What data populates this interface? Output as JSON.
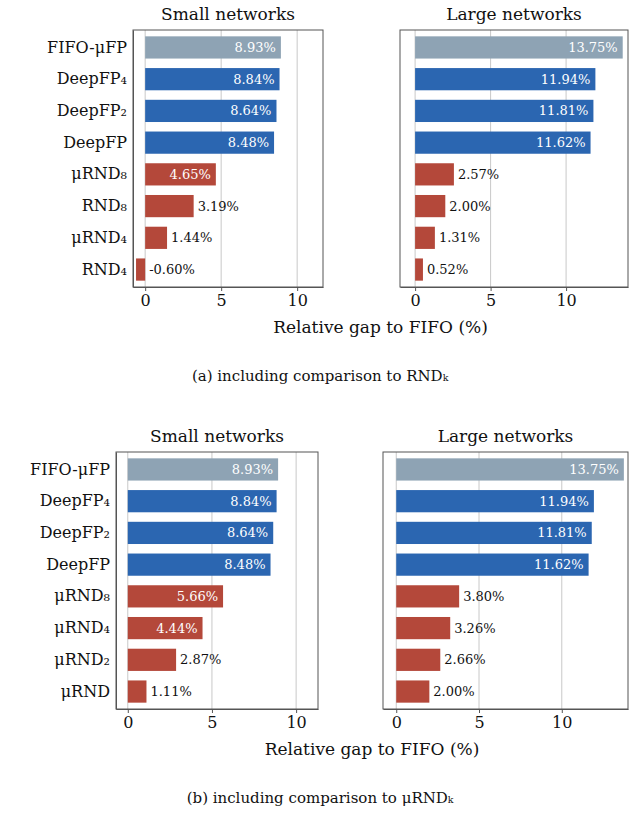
{
  "chart_data": [
    {
      "type": "bar",
      "orientation": "horizontal",
      "title": "Small networks",
      "categories": [
        "FIFO-μFP",
        "DeepFP₄",
        "DeepFP₂",
        "DeepFP",
        "μRND₈",
        "RND₈",
        "μRND₄",
        "RND₄"
      ],
      "values": [
        8.93,
        8.84,
        8.64,
        8.48,
        4.65,
        3.19,
        1.44,
        -0.6
      ],
      "value_labels": [
        "8.93%",
        "8.84%",
        "8.64%",
        "8.48%",
        "4.65%",
        "3.19%",
        "1.44%",
        "-0.60%"
      ],
      "colors": [
        "#8ea3b4",
        "#2b66b1",
        "#2b66b1",
        "#2b66b1",
        "#b4483a",
        "#b4483a",
        "#b4483a",
        "#b4483a"
      ],
      "xlim": [
        -0.8,
        11.7
      ],
      "xticks": [
        0,
        5,
        10
      ],
      "grid": true,
      "data_labels": true,
      "xlabel": "Relative gap to FIFO (%)",
      "caption": "(a) including comparison to RNDₖ"
    },
    {
      "type": "bar",
      "orientation": "horizontal",
      "title": "Large networks",
      "categories": [
        "FIFO-μFP",
        "DeepFP₄",
        "DeepFP₂",
        "DeepFP",
        "μRND₈",
        "RND₈",
        "μRND₄",
        "RND₄"
      ],
      "values": [
        13.75,
        11.94,
        11.81,
        11.62,
        2.57,
        2.0,
        1.31,
        0.52
      ],
      "value_labels": [
        "13.75%",
        "11.94%",
        "11.81%",
        "11.62%",
        "2.57%",
        "2.00%",
        "1.31%",
        "0.52%"
      ],
      "colors": [
        "#8ea3b4",
        "#2b66b1",
        "#2b66b1",
        "#2b66b1",
        "#b4483a",
        "#b4483a",
        "#b4483a",
        "#b4483a"
      ],
      "xlim": [
        -1.0,
        14.1
      ],
      "xticks": [
        0,
        5,
        10
      ],
      "grid": true,
      "data_labels": true,
      "tick_labels": "x"
    },
    {
      "type": "bar",
      "orientation": "horizontal",
      "title": "Small networks",
      "categories": [
        "FIFO-μFP",
        "DeepFP₄",
        "DeepFP₂",
        "DeepFP",
        "μRND₈",
        "μRND₄",
        "μRND₂",
        "μRND"
      ],
      "values": [
        8.93,
        8.84,
        8.64,
        8.48,
        5.66,
        4.44,
        2.87,
        1.11
      ],
      "value_labels": [
        "8.93%",
        "8.84%",
        "8.64%",
        "8.48%",
        "5.66%",
        "4.44%",
        "2.87%",
        "1.11%"
      ],
      "colors": [
        "#8ea3b4",
        "#2b66b1",
        "#2b66b1",
        "#2b66b1",
        "#b4483a",
        "#b4483a",
        "#b4483a",
        "#b4483a"
      ],
      "xlim": [
        -0.7,
        11.3
      ],
      "xticks": [
        0,
        5,
        10
      ],
      "grid": true,
      "data_labels": true,
      "xlabel": "Relative gap to FIFO (%)",
      "caption": "(b) including comparison to μRNDₖ"
    },
    {
      "type": "bar",
      "orientation": "horizontal",
      "title": "Large networks",
      "categories": [
        "FIFO-μFP",
        "DeepFP₄",
        "DeepFP₂",
        "DeepFP",
        "μRND₈",
        "μRND₄",
        "μRND₂",
        "μRND"
      ],
      "values": [
        13.75,
        11.94,
        11.81,
        11.62,
        3.8,
        3.26,
        2.66,
        2.0
      ],
      "value_labels": [
        "13.75%",
        "11.94%",
        "11.81%",
        "11.62%",
        "3.80%",
        "3.26%",
        "2.66%",
        "2.00%"
      ],
      "colors": [
        "#8ea3b4",
        "#2b66b1",
        "#2b66b1",
        "#2b66b1",
        "#b4483a",
        "#b4483a",
        "#b4483a",
        "#b4483a"
      ],
      "xlim": [
        -0.8,
        14.0
      ],
      "xticks": [
        0,
        5,
        10
      ],
      "grid": true,
      "data_labels": true,
      "tick_labels": "x"
    }
  ]
}
